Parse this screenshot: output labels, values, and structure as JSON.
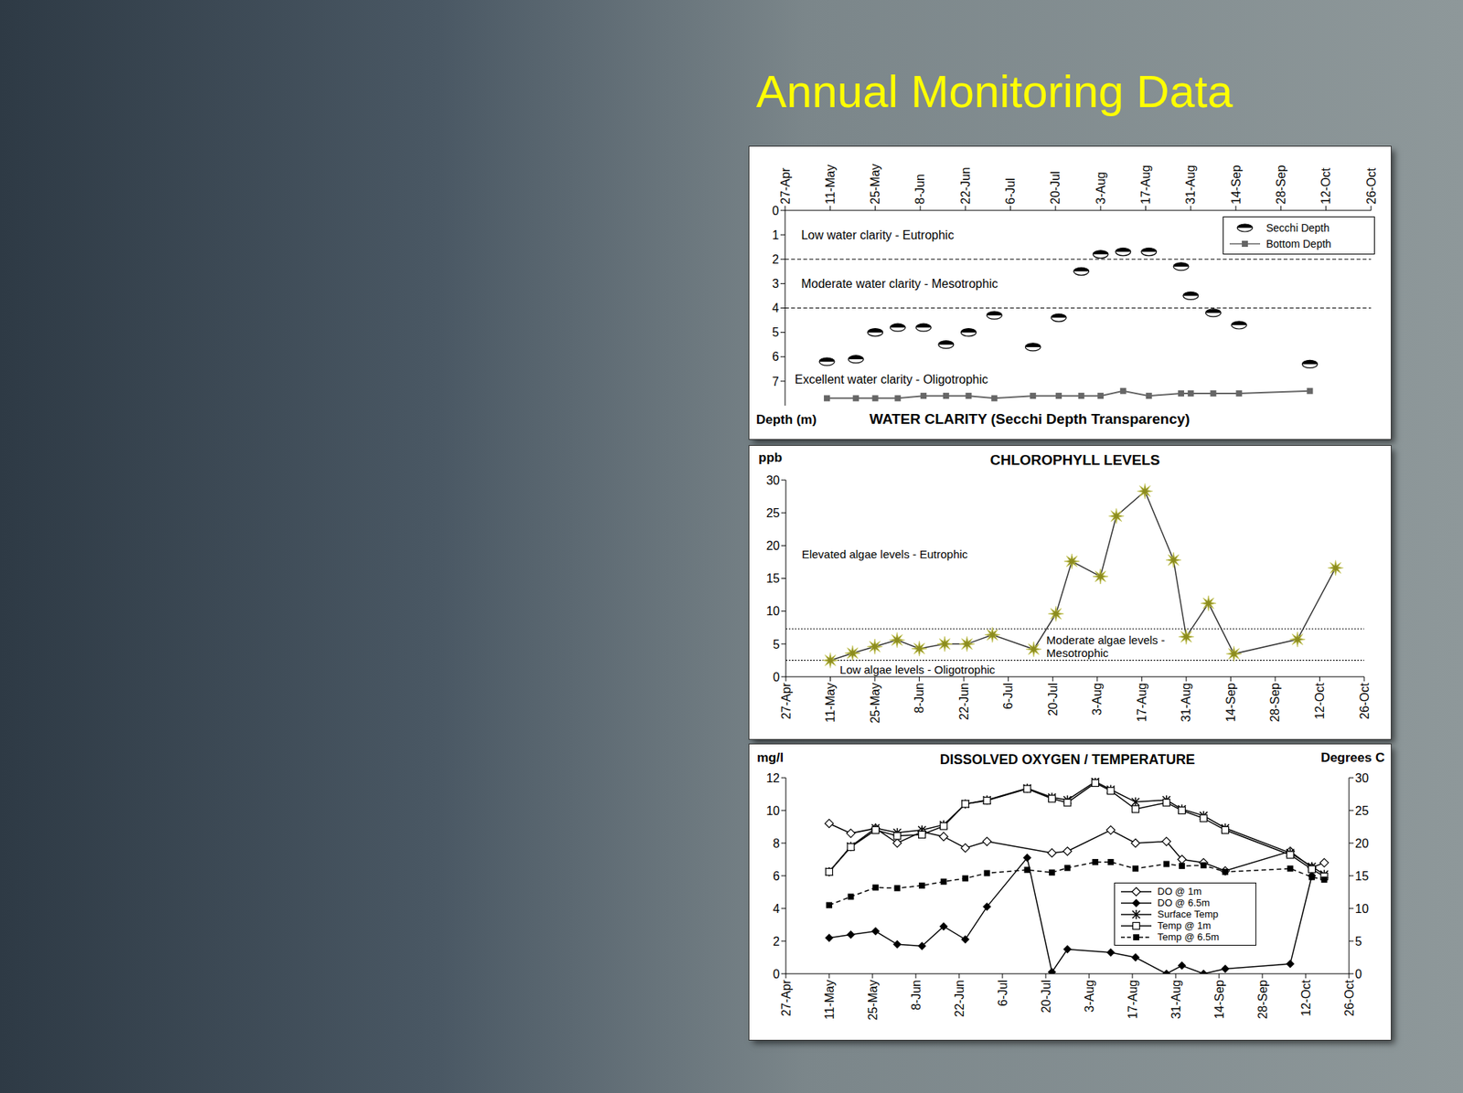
{
  "title": "Annual Monitoring Data",
  "chart_data": [
    {
      "type": "scatter",
      "title": "WATER CLARITY (Secchi Depth Transparency)",
      "y_label": "Depth (m)",
      "xlim": [
        0,
        182
      ],
      "xticks": [
        {
          "value": 0,
          "label": "27-Apr"
        },
        {
          "value": 14,
          "label": "11-May"
        },
        {
          "value": 28,
          "label": "25-May"
        },
        {
          "value": 42,
          "label": "8-Jun"
        },
        {
          "value": 56,
          "label": "22-Jun"
        },
        {
          "value": 70,
          "label": "6-Jul"
        },
        {
          "value": 84,
          "label": "20-Jul"
        },
        {
          "value": 98,
          "label": "3-Aug"
        },
        {
          "value": 112,
          "label": "17-Aug"
        },
        {
          "value": 126,
          "label": "31-Aug"
        },
        {
          "value": 140,
          "label": "14-Sep"
        },
        {
          "value": 154,
          "label": "28-Sep"
        },
        {
          "value": 168,
          "label": "12-Oct"
        },
        {
          "value": 182,
          "label": "26-Oct"
        }
      ],
      "ylim": [
        8,
        0
      ],
      "yticks": [
        0,
        1,
        2,
        3,
        4,
        5,
        6,
        7
      ],
      "reference_lines": [
        2,
        4
      ],
      "annotations": [
        {
          "text": "Low water clarity - Eutrophic",
          "x": 5,
          "y": 1.0
        },
        {
          "text": "Moderate water clarity - Mesotrophic",
          "x": 5,
          "y": 3.0
        },
        {
          "text": "Excellent water clarity - Oligotrophic",
          "x": 3,
          "y": 6.9
        }
      ],
      "legend": "upper right",
      "series": [
        {
          "name": "Secchi Depth",
          "type": "scatter",
          "marker": "disk",
          "color": "#000000",
          "x": [
            13,
            22,
            28,
            35,
            43,
            50,
            57,
            65,
            77,
            85,
            92,
            98,
            105,
            113,
            123,
            126,
            133,
            141,
            163
          ],
          "values": [
            6.2,
            6.1,
            5.0,
            4.8,
            4.8,
            5.5,
            5.0,
            4.3,
            5.6,
            4.4,
            2.5,
            1.8,
            1.7,
            1.7,
            2.3,
            3.5,
            4.2,
            4.7,
            6.3
          ]
        },
        {
          "name": "Bottom Depth",
          "type": "line",
          "marker": "square",
          "line_style": "solid",
          "color": "#666666",
          "x": [
            13,
            22,
            28,
            35,
            43,
            50,
            57,
            65,
            77,
            85,
            92,
            98,
            105,
            113,
            123,
            126,
            133,
            141,
            163
          ],
          "values": [
            7.7,
            7.7,
            7.7,
            7.7,
            7.6,
            7.6,
            7.6,
            7.7,
            7.6,
            7.6,
            7.6,
            7.6,
            7.4,
            7.6,
            7.5,
            7.5,
            7.5,
            7.5,
            7.4
          ]
        }
      ]
    },
    {
      "type": "line",
      "title": "CHLOROPHYLL LEVELS",
      "y_label": "ppb",
      "xlim": [
        0,
        182
      ],
      "xticks": [
        {
          "value": 0,
          "label": "27-Apr"
        },
        {
          "value": 14,
          "label": "11-May"
        },
        {
          "value": 28,
          "label": "25-May"
        },
        {
          "value": 42,
          "label": "8-Jun"
        },
        {
          "value": 56,
          "label": "22-Jun"
        },
        {
          "value": 70,
          "label": "6-Jul"
        },
        {
          "value": 84,
          "label": "20-Jul"
        },
        {
          "value": 98,
          "label": "3-Aug"
        },
        {
          "value": 112,
          "label": "17-Aug"
        },
        {
          "value": 126,
          "label": "31-Aug"
        },
        {
          "value": 140,
          "label": "14-Sep"
        },
        {
          "value": 154,
          "label": "28-Sep"
        },
        {
          "value": 168,
          "label": "12-Oct"
        },
        {
          "value": 182,
          "label": "26-Oct"
        }
      ],
      "ylim": [
        0,
        30
      ],
      "yticks": [
        0,
        5,
        10,
        15,
        20,
        25,
        30
      ],
      "reference_lines": [
        2.5,
        7.3
      ],
      "annotations": [
        {
          "text": "Elevated algae levels - Eutrophic",
          "x": 5,
          "y": 18.8
        },
        {
          "text": "Moderate algae levels - Mesotrophic",
          "x": 82,
          "y": 4.7
        },
        {
          "text": "Low algae levels - Oligotrophic",
          "x": 17,
          "y": 1.2
        }
      ],
      "marker": "star",
      "color": "#8c8c1e",
      "x": [
        14,
        21,
        28,
        35,
        42,
        50,
        57,
        65,
        78,
        85,
        90,
        99,
        104,
        113,
        122,
        126,
        133,
        141,
        161,
        173
      ],
      "values": [
        2.5,
        3.6,
        4.6,
        5.6,
        4.3,
        5.0,
        5.0,
        6.4,
        4.2,
        9.6,
        17.6,
        15.3,
        24.5,
        28.3,
        17.8,
        6.1,
        11.2,
        3.5,
        5.7,
        16.6
      ]
    },
    {
      "type": "line",
      "title": "DISSOLVED OXYGEN / TEMPERATURE",
      "y_label": "mg/l",
      "y2_label": "Degrees C",
      "xlim": [
        0,
        182
      ],
      "xticks": [
        {
          "value": 0,
          "label": "27-Apr"
        },
        {
          "value": 14,
          "label": "11-May"
        },
        {
          "value": 28,
          "label": "25-May"
        },
        {
          "value": 42,
          "label": "8-Jun"
        },
        {
          "value": 56,
          "label": "22-Jun"
        },
        {
          "value": 70,
          "label": "6-Jul"
        },
        {
          "value": 84,
          "label": "20-Jul"
        },
        {
          "value": 98,
          "label": "3-Aug"
        },
        {
          "value": 112,
          "label": "17-Aug"
        },
        {
          "value": 126,
          "label": "31-Aug"
        },
        {
          "value": 140,
          "label": "14-Sep"
        },
        {
          "value": 154,
          "label": "28-Sep"
        },
        {
          "value": 168,
          "label": "12-Oct"
        },
        {
          "value": 182,
          "label": "26-Oct"
        }
      ],
      "ylim": [
        0,
        12
      ],
      "yticks": [
        0,
        2,
        4,
        6,
        8,
        10,
        12
      ],
      "y2lim": [
        0,
        30
      ],
      "y2ticks": [
        0,
        5,
        10,
        15,
        20,
        25,
        30
      ],
      "legend": "lower center",
      "series": [
        {
          "name": "DO @ 1m",
          "marker": "diamond-open",
          "line_style": "solid",
          "color": "#000000",
          "x": [
            14,
            21,
            29,
            36,
            44,
            51,
            58,
            65,
            86,
            91,
            105,
            113,
            123,
            128,
            135,
            142,
            163,
            170,
            174
          ],
          "values": [
            9.2,
            8.6,
            8.9,
            8.0,
            8.7,
            8.4,
            7.7,
            8.1,
            7.4,
            7.5,
            8.8,
            8.0,
            8.1,
            7.0,
            6.8,
            6.3,
            7.5,
            6.5,
            6.8
          ]
        },
        {
          "name": "DO @ 6.5m",
          "marker": "diamond",
          "line_style": "solid",
          "color": "#000000",
          "x": [
            14,
            21,
            29,
            36,
            44,
            51,
            58,
            65,
            78,
            86,
            91,
            105,
            113,
            123,
            128,
            135,
            142,
            163,
            170
          ],
          "values": [
            2.2,
            2.4,
            2.6,
            1.8,
            1.7,
            2.9,
            2.1,
            4.1,
            7.1,
            0.1,
            1.5,
            1.3,
            1.0,
            0.0,
            0.5,
            0.0,
            0.3,
            0.6,
            6.0
          ]
        },
        {
          "name": "Surface Temp",
          "axis": "y2",
          "marker": "asterisk",
          "line_style": "solid",
          "color": "#000000",
          "x": [
            14,
            21,
            29,
            36,
            44,
            51,
            58,
            65,
            78,
            86,
            91,
            100,
            105,
            113,
            123,
            128,
            135,
            142,
            163,
            170,
            174
          ],
          "values": [
            15.6,
            19.5,
            22.3,
            21.6,
            22.0,
            22.8,
            26.0,
            26.6,
            28.4,
            27.0,
            26.6,
            29.4,
            28.2,
            26.3,
            26.6,
            25.2,
            24.2,
            22.3,
            18.5,
            16.4,
            15.2
          ]
        },
        {
          "name": "Temp @ 1m",
          "axis": "y2",
          "marker": "square-open",
          "line_style": "solid",
          "color": "#000000",
          "x": [
            14,
            21,
            29,
            36,
            44,
            51,
            58,
            65,
            78,
            86,
            91,
            100,
            105,
            113,
            123,
            128,
            135,
            142,
            163,
            170,
            174
          ],
          "values": [
            15.6,
            19.4,
            22.0,
            21.1,
            21.3,
            22.6,
            26.0,
            26.5,
            28.3,
            26.8,
            26.2,
            29.2,
            28.0,
            25.2,
            26.2,
            25.0,
            23.8,
            22.0,
            18.2,
            16.0,
            14.9
          ]
        },
        {
          "name": "Temp @ 6.5m",
          "axis": "y2",
          "marker": "square",
          "line_style": "dashed",
          "color": "#000000",
          "x": [
            14,
            21,
            29,
            36,
            44,
            51,
            58,
            65,
            78,
            86,
            91,
            100,
            105,
            113,
            123,
            128,
            135,
            142,
            163,
            170,
            174
          ],
          "values": [
            10.5,
            11.8,
            13.2,
            13.1,
            13.5,
            14.1,
            14.6,
            15.4,
            15.9,
            15.5,
            16.2,
            17.1,
            17.1,
            16.1,
            16.8,
            16.5,
            16.6,
            15.6,
            16.1,
            14.8,
            14.4
          ]
        }
      ]
    }
  ]
}
